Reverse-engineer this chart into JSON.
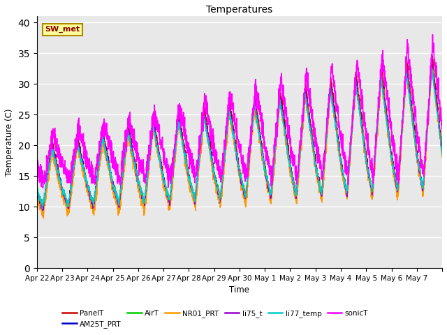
{
  "title": "Temperatures",
  "xlabel": "Time",
  "ylabel": "Temperature (C)",
  "ylim": [
    0,
    41
  ],
  "yticks": [
    0,
    5,
    10,
    15,
    20,
    25,
    30,
    35,
    40
  ],
  "annotation_text": "SW_met",
  "bg_color": "#e8e8e8",
  "series_order": [
    "PanelT",
    "AM25T_PRT",
    "AirT",
    "NR01_PRT",
    "li75_t",
    "li77_temp",
    "sonicT"
  ],
  "series": {
    "PanelT": {
      "color": "#cc0000",
      "lw": 1.0
    },
    "AM25T_PRT": {
      "color": "#0000cc",
      "lw": 1.0
    },
    "AirT": {
      "color": "#00cc00",
      "lw": 1.0
    },
    "NR01_PRT": {
      "color": "#ff9900",
      "lw": 1.0
    },
    "li75_t": {
      "color": "#9900cc",
      "lw": 1.0
    },
    "li77_temp": {
      "color": "#00cccc",
      "lw": 1.0
    },
    "sonicT": {
      "color": "#ff00ff",
      "lw": 1.2
    }
  },
  "xticklabels": [
    "Apr 22",
    "Apr 23",
    "Apr 24",
    "Apr 25",
    "Apr 26",
    "Apr 27",
    "Apr 28",
    "Apr 29",
    "Apr 30",
    "May 1",
    "May 2",
    "May 3",
    "May 4",
    "May 5",
    "May 6",
    "May 7"
  ],
  "n_days": 16,
  "pts_per_day": 144
}
